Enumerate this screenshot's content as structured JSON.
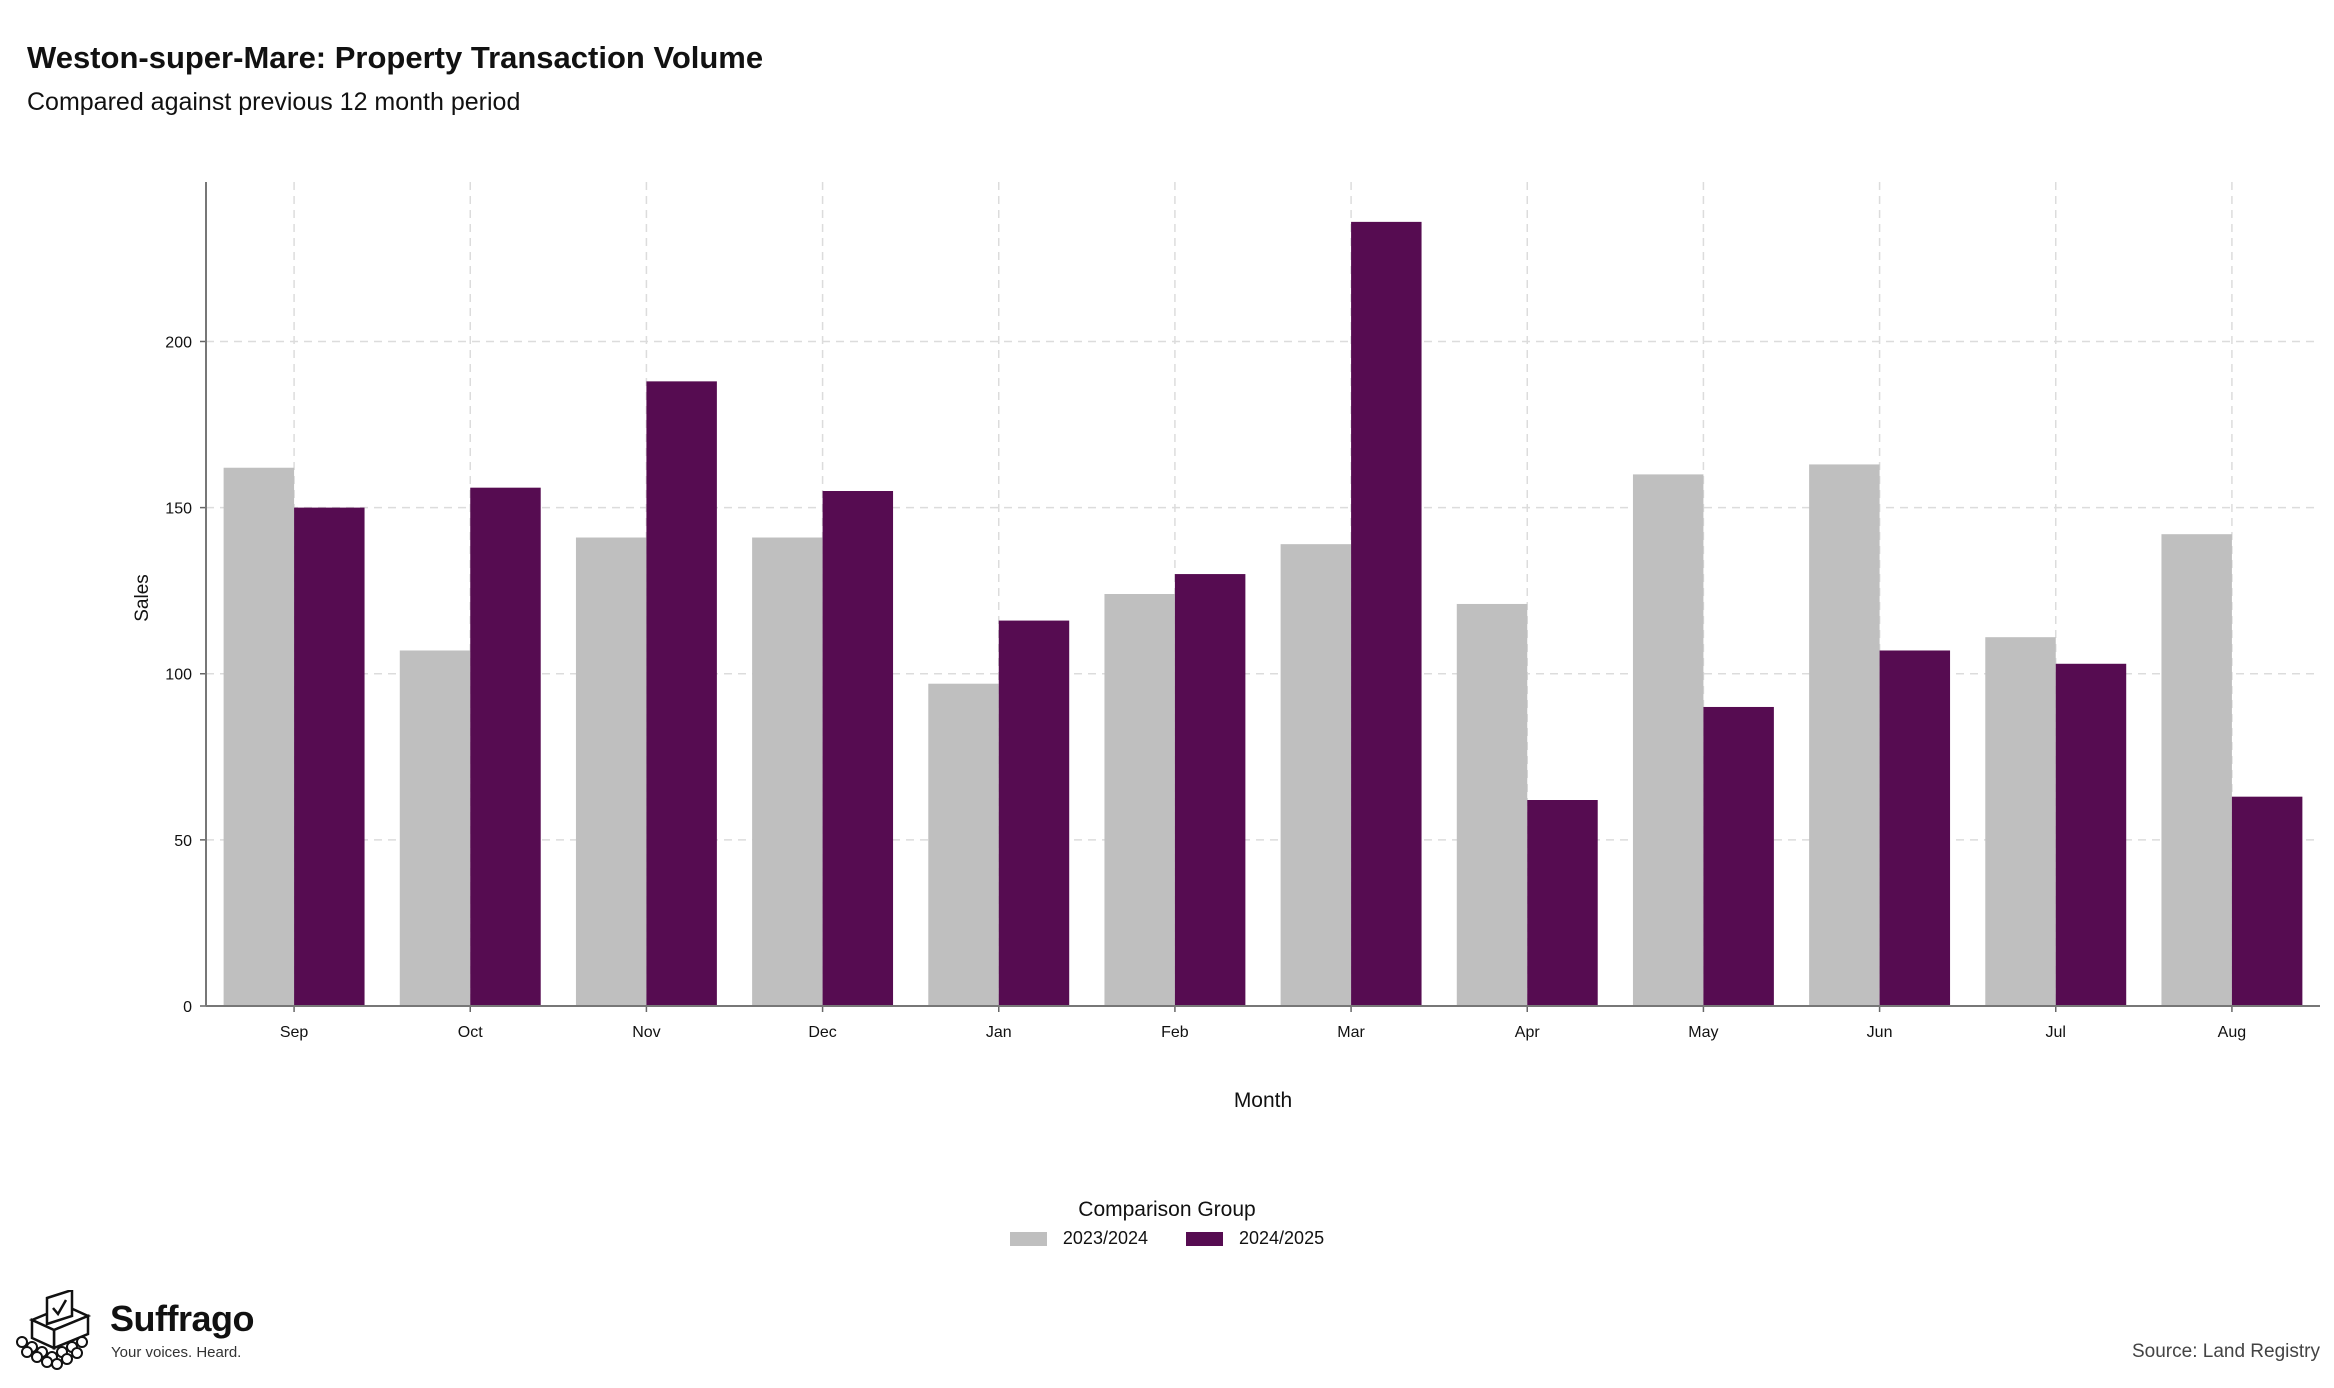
{
  "header": {
    "title": "Weston-super-Mare: Property Transaction Volume",
    "subtitle": "Compared against previous 12 month period"
  },
  "chart_data": {
    "type": "bar",
    "title": "Weston-super-Mare: Property Transaction Volume",
    "subtitle": "Compared against previous 12 month period",
    "xlabel": "Month",
    "ylabel": "Sales",
    "categories": [
      "Sep",
      "Oct",
      "Nov",
      "Dec",
      "Jan",
      "Feb",
      "Mar",
      "Apr",
      "May",
      "Jun",
      "Jul",
      "Aug"
    ],
    "series": [
      {
        "name": "2023/2024",
        "color": "#bfbfbf",
        "values": [
          162,
          107,
          141,
          141,
          97,
          124,
          139,
          121,
          160,
          163,
          111,
          142
        ]
      },
      {
        "name": "2024/2025",
        "color": "#560c51",
        "values": [
          150,
          156,
          188,
          155,
          116,
          130,
          236,
          62,
          90,
          107,
          103,
          63
        ]
      }
    ],
    "ylim": [
      0,
      248
    ],
    "yticks": [
      0,
      50,
      100,
      150,
      200
    ],
    "grid": true,
    "legend_title": "Comparison Group",
    "legend_position": "bottom"
  },
  "legend": {
    "title": "Comparison Group",
    "items": [
      "2023/2024",
      "2024/2025"
    ]
  },
  "branding": {
    "name": "Suffrago",
    "tagline": "Your voices. Heard."
  },
  "footer": {
    "source": "Source: Land Registry"
  }
}
